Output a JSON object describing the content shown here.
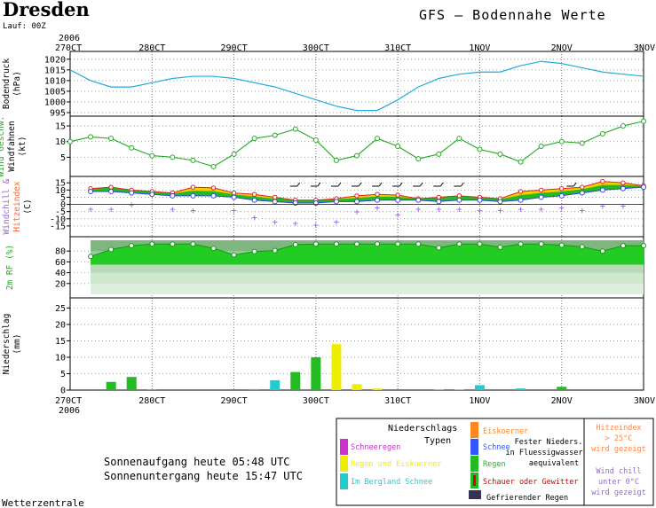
{
  "header": {
    "city": "Dresden",
    "run": "Lauf: 00Z",
    "product": "GFS – Bodennahe Werte",
    "year": "2006"
  },
  "footer": {
    "sunrise": "Sonnenaufgang heute 05:48 UTC",
    "sunset": "Sonnenuntergang heute 15:47 UTC",
    "source": "Wetterzentrale"
  },
  "legend": {
    "title_line1": "Niederschlags",
    "title_line2": "Typen",
    "schneeregen": "Schneeregen",
    "regen_eis": "Regen und Eiskoerner",
    "bergland": "Im Bergland Schnee",
    "eiskoerner": "Eiskoerner",
    "schnee": "Schnee",
    "regen": "Regen",
    "schauer": "Schauer oder Gewitter",
    "gefrierend": "Gefrierender Regen",
    "fester_1": "Fester Nieders.",
    "fester_2": "in Fluessigwasser",
    "fester_3": "aequivalent",
    "hitze_1": "Hitzeindex",
    "hitze_2": "> 25°C",
    "hitze_3": "wird gezeigt",
    "chill_1": "Wind chill",
    "chill_2": "unter 0°C",
    "chill_3": "wird gezeigt",
    "colors": {
      "schneeregen": "#cc33cc",
      "regen_eis": "#eeee00",
      "bergland": "#22cccc",
      "eiskoerner": "#ff8822",
      "schnee": "#3355ff",
      "regen": "#22bb22",
      "schauer_bar": "#22bb22",
      "schauer_mark": "#dd0000",
      "gefrierend": "#333355",
      "hitze": "#ff8844",
      "chill": "#9966dd"
    }
  },
  "chart_data": {
    "type": "meteogram",
    "x_unit": "hours since 27OCT 00Z",
    "x_range": [
      0,
      168
    ],
    "x_tick_labels_top": [
      "270CT",
      "280CT",
      "290CT",
      "300CT",
      "310CT",
      "1NOV",
      "2NOV",
      "3NOV"
    ],
    "x_tick_labels_bottom": [
      "270CT",
      "280CT",
      "290CT",
      "300CT",
      "310CT",
      "1NOV",
      "2NOV",
      "3NOV"
    ],
    "panels": [
      {
        "id": "pressure",
        "ylabel_lines": [
          "Bodendruck",
          "(hPa)"
        ],
        "ylim": [
          995,
          1022
        ],
        "yticks": [
          995,
          1000,
          1005,
          1010,
          1015,
          1020
        ],
        "color": "#22aadd",
        "x": [
          0,
          6,
          12,
          18,
          24,
          30,
          36,
          42,
          48,
          54,
          60,
          66,
          72,
          78,
          84,
          90,
          96,
          102,
          108,
          114,
          120,
          126,
          132,
          138,
          144,
          150,
          156,
          162,
          168
        ],
        "values": [
          1015,
          1010,
          1007,
          1007,
          1009,
          1011,
          1012,
          1012,
          1011,
          1009,
          1007,
          1004,
          1001,
          998,
          996,
          996,
          1001,
          1007,
          1011,
          1013,
          1014,
          1014,
          1017,
          1019,
          1018,
          1016,
          1014,
          1013,
          1012
        ]
      },
      {
        "id": "wind",
        "ylabel_lines": [
          "Wind Geschw.",
          "Windfahnen",
          "(kt)"
        ],
        "ylim": [
          0,
          17
        ],
        "yticks": [
          5,
          10,
          15
        ],
        "color": "#22aa22",
        "x": [
          0,
          6,
          12,
          18,
          24,
          30,
          36,
          42,
          48,
          54,
          60,
          66,
          72,
          78,
          84,
          90,
          96,
          102,
          108,
          114,
          120,
          126,
          132,
          138,
          144,
          150,
          156,
          162,
          168
        ],
        "values": [
          10,
          11.5,
          11,
          8,
          5.5,
          5,
          4,
          2,
          6,
          11,
          12,
          14,
          10.5,
          4,
          5.5,
          11,
          8.5,
          4.5,
          6,
          11,
          7.5,
          6,
          3.5,
          8.5,
          10,
          9.5,
          12.5,
          15,
          16.5
        ]
      },
      {
        "id": "temperature",
        "ylabel_lines": [
          "T-Min, Max,",
          "Windchill &",
          "Hitzeindex",
          "(C)"
        ],
        "ylim": [
          -20,
          17
        ],
        "yticks": [
          -15,
          -10,
          -5,
          0,
          5,
          10,
          15
        ],
        "x": [
          6,
          12,
          18,
          24,
          30,
          36,
          42,
          48,
          54,
          60,
          66,
          72,
          78,
          84,
          90,
          96,
          102,
          108,
          114,
          120,
          126,
          132,
          138,
          144,
          150,
          156,
          162,
          168
        ],
        "tmax": [
          11,
          12,
          10,
          9,
          8,
          12,
          11.5,
          8,
          7,
          5,
          3,
          3,
          4,
          6,
          7,
          6.5,
          4,
          5,
          6,
          5,
          4,
          9,
          10,
          11,
          12,
          16,
          15,
          13
        ],
        "tmin": [
          9,
          9,
          8,
          7,
          6,
          6,
          6,
          5,
          3,
          2,
          1,
          1,
          2,
          2,
          3,
          3,
          3,
          2,
          3,
          3,
          2,
          3,
          5,
          6,
          8,
          10,
          11,
          12
        ],
        "windchill_x": [
          6,
          12,
          18,
          30,
          36,
          48,
          54,
          60,
          66,
          72,
          78,
          84,
          90,
          96,
          102,
          108,
          114,
          120,
          126,
          132,
          138,
          144,
          150,
          156,
          162
        ],
        "windchill": [
          -3,
          -3,
          0,
          -3,
          -4,
          -4,
          -9,
          -12,
          -13,
          -14,
          -12,
          -5,
          -2,
          -7,
          -3,
          -3,
          -3,
          -4,
          -4,
          -3,
          -3,
          -2,
          -4,
          -1,
          -1
        ],
        "colors": {
          "tmax": "#dd2222",
          "tmin": "#3344dd",
          "fill_warm": "#22bb22",
          "fill_hot": "#ffcc00",
          "windchill": "#9966dd"
        }
      },
      {
        "id": "humidity",
        "ylabel_lines": [
          "2m RF (%)"
        ],
        "ylim": [
          0,
          100
        ],
        "yticks": [
          20,
          40,
          60,
          80
        ],
        "x": [
          6,
          12,
          18,
          24,
          30,
          36,
          42,
          48,
          54,
          60,
          66,
          72,
          78,
          84,
          90,
          96,
          102,
          108,
          114,
          120,
          126,
          132,
          138,
          144,
          150,
          156,
          162,
          168
        ],
        "values": [
          70,
          83,
          90,
          93,
          93,
          93,
          85,
          73,
          79,
          81,
          92,
          93,
          93,
          93,
          93,
          93,
          93,
          86,
          93,
          93,
          87,
          93,
          93,
          91,
          88,
          80,
          90,
          90
        ],
        "color": "#22cc22"
      },
      {
        "id": "precipitation",
        "ylabel_lines": [
          "Niederschlag",
          "(mm)"
        ],
        "ylim": [
          0,
          27
        ],
        "yticks": [
          0,
          5,
          10,
          15,
          20,
          25
        ],
        "bars": [
          {
            "x": 12,
            "value": 2.5,
            "type": "regen"
          },
          {
            "x": 18,
            "value": 4,
            "type": "regen"
          },
          {
            "x": 24,
            "value": 0.2,
            "type": "regen"
          },
          {
            "x": 54,
            "value": 0.3,
            "type": "bergland"
          },
          {
            "x": 60,
            "value": 3,
            "type": "bergland"
          },
          {
            "x": 66,
            "value": 5.5,
            "type": "regen"
          },
          {
            "x": 72,
            "value": 10,
            "type": "regen"
          },
          {
            "x": 78,
            "value": 14,
            "type": "regen_eis"
          },
          {
            "x": 84,
            "value": 1.8,
            "type": "regen_eis"
          },
          {
            "x": 90,
            "value": 0.5,
            "type": "regen_eis"
          },
          {
            "x": 108,
            "value": 0.2,
            "type": "bergland"
          },
          {
            "x": 114,
            "value": 0.1,
            "type": "bergland"
          },
          {
            "x": 120,
            "value": 1.5,
            "type": "bergland"
          },
          {
            "x": 132,
            "value": 0.5,
            "type": "bergland"
          },
          {
            "x": 144,
            "value": 1,
            "type": "regen"
          }
        ]
      }
    ]
  }
}
